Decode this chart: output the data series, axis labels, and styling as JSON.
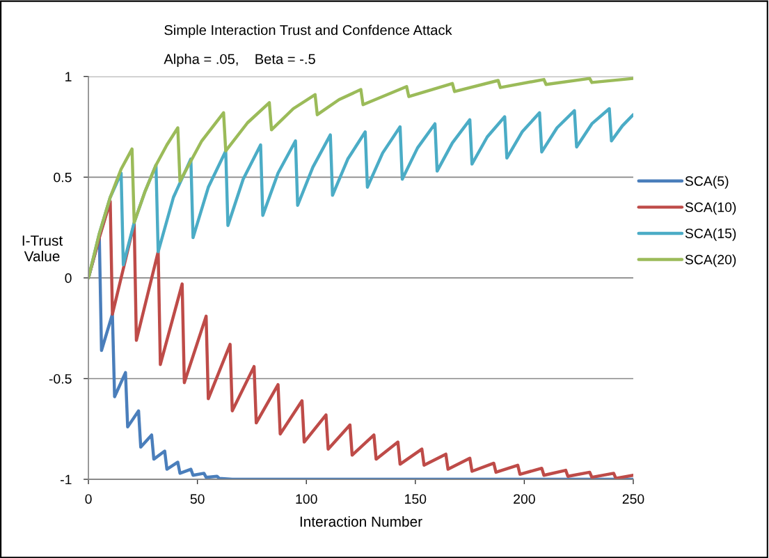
{
  "chart_data": {
    "type": "line",
    "title": "Simple Interaction Trust and Confdence Attack",
    "subtitle": "Alpha = .05,    Beta = -.5",
    "xlabel": "Interaction Number",
    "ylabel": "I-Trust\nValue",
    "xlim": [
      0,
      250
    ],
    "xticks": [
      0,
      50,
      100,
      150,
      200,
      250
    ],
    "ylim": [
      -1,
      1
    ],
    "yticks": [
      -1,
      -0.5,
      0,
      0.5,
      1
    ],
    "grid": "y",
    "legend": "right",
    "marker": "none",
    "line_style": "solid",
    "series": [
      {
        "name": "SCA(5)",
        "color": "#4a7ebb",
        "x": [
          0,
          5,
          6,
          11,
          12,
          17,
          18,
          23,
          24,
          29,
          30,
          35,
          36,
          41,
          42,
          47,
          48,
          53,
          54,
          59,
          60,
          66,
          250
        ],
        "values": [
          0,
          0.2,
          -0.36,
          -0.18,
          -0.59,
          -0.47,
          -0.74,
          -0.66,
          -0.84,
          -0.78,
          -0.9,
          -0.86,
          -0.95,
          -0.915,
          -0.97,
          -0.95,
          -0.98,
          -0.97,
          -0.99,
          -0.985,
          -0.995,
          -1,
          -1
        ]
      },
      {
        "name": "SCA(10)",
        "color": "#be4b48",
        "x": [
          0,
          5,
          10,
          11,
          21,
          22,
          32,
          33,
          43,
          44,
          54,
          55,
          65,
          66,
          76,
          77,
          87,
          88,
          98,
          99,
          109,
          110,
          120,
          121,
          131,
          132,
          142,
          143,
          153,
          154,
          164,
          165,
          175,
          176,
          186,
          187,
          197,
          198,
          208,
          209,
          219,
          220,
          230,
          231,
          241,
          242,
          250
        ],
        "values": [
          0,
          0.2,
          0.38,
          -0.18,
          0.27,
          -0.31,
          0.13,
          -0.43,
          -0.03,
          -0.52,
          -0.19,
          -0.6,
          -0.33,
          -0.66,
          -0.44,
          -0.72,
          -0.53,
          -0.775,
          -0.61,
          -0.815,
          -0.68,
          -0.85,
          -0.73,
          -0.88,
          -0.78,
          -0.9,
          -0.815,
          -0.925,
          -0.85,
          -0.93,
          -0.875,
          -0.95,
          -0.895,
          -0.96,
          -0.92,
          -0.965,
          -0.93,
          -0.975,
          -0.945,
          -0.98,
          -0.955,
          -0.985,
          -0.965,
          -0.99,
          -0.97,
          -0.995,
          -0.98
        ]
      },
      {
        "name": "SCA(15)",
        "color": "#4bacc6",
        "x": [
          0,
          5,
          10,
          15,
          16,
          21,
          26,
          31,
          32,
          39,
          47,
          48,
          55,
          63,
          64,
          71,
          79,
          80,
          87,
          95,
          96,
          103,
          111,
          112,
          119,
          127,
          128,
          135,
          143,
          144,
          151,
          159,
          160,
          167,
          175,
          176,
          183,
          191,
          192,
          199,
          207,
          208,
          215,
          223,
          224,
          231,
          239,
          240,
          245,
          250
        ],
        "values": [
          0,
          0.22,
          0.4,
          0.52,
          0.065,
          0.275,
          0.43,
          0.56,
          0.13,
          0.4,
          0.59,
          0.2,
          0.45,
          0.63,
          0.26,
          0.49,
          0.66,
          0.31,
          0.52,
          0.68,
          0.36,
          0.55,
          0.71,
          0.41,
          0.59,
          0.725,
          0.45,
          0.62,
          0.75,
          0.49,
          0.645,
          0.765,
          0.53,
          0.67,
          0.785,
          0.565,
          0.7,
          0.8,
          0.595,
          0.725,
          0.82,
          0.625,
          0.745,
          0.83,
          0.65,
          0.765,
          0.84,
          0.68,
          0.755,
          0.81
        ]
      },
      {
        "name": "SCA(20)",
        "color": "#9bbb59",
        "x": [
          0,
          5,
          10,
          15,
          20,
          21,
          26,
          31,
          36,
          41,
          42,
          52,
          62,
          63,
          73,
          83,
          84,
          94,
          104,
          105,
          115,
          125,
          126,
          146,
          147,
          167,
          168,
          188,
          189,
          209,
          210,
          230,
          231,
          250
        ],
        "values": [
          0,
          0.22,
          0.4,
          0.54,
          0.64,
          0.275,
          0.43,
          0.56,
          0.66,
          0.745,
          0.48,
          0.68,
          0.82,
          0.63,
          0.77,
          0.87,
          0.735,
          0.84,
          0.91,
          0.81,
          0.885,
          0.935,
          0.86,
          0.95,
          0.9,
          0.965,
          0.925,
          0.98,
          0.945,
          0.985,
          0.96,
          0.99,
          0.97,
          0.99
        ]
      }
    ]
  }
}
